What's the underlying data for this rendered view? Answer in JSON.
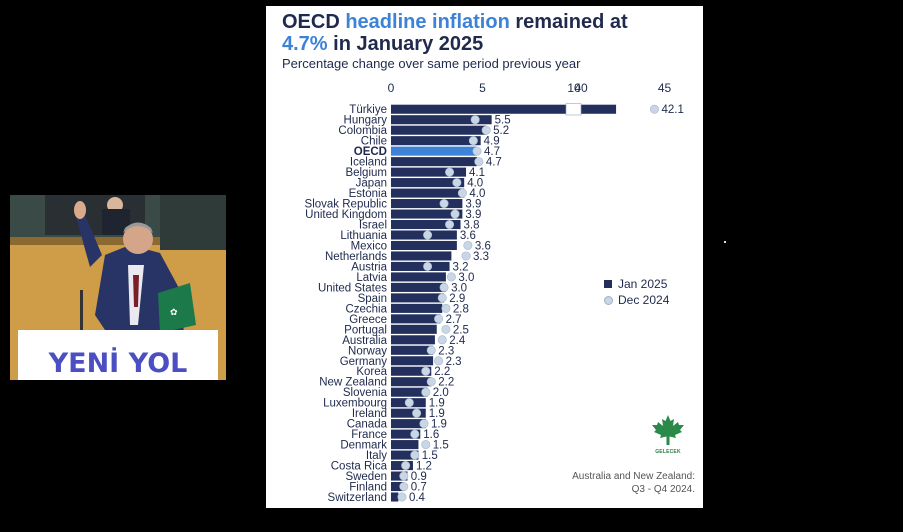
{
  "chart_data": {
    "type": "bar",
    "title_prefix": "OECD ",
    "title_highlight1": "headline inflation",
    "title_mid": " remained at",
    "title_highlight2": "4.7%",
    "title_suffix": " in January 2025",
    "subtitle": "Percentage change over same period previous year",
    "xticks_main": [
      "0",
      "5",
      "10"
    ],
    "xticks_break": [
      "40",
      "45"
    ],
    "xlim_main": [
      0,
      10
    ],
    "xlim_break": [
      40,
      45
    ],
    "highlight_category": "OECD",
    "categories": [
      "Türkiye",
      "Hungary",
      "Colombia",
      "Chile",
      "OECD",
      "Iceland",
      "Belgium",
      "Japan",
      "Estonia",
      "Slovak Republic",
      "United Kingdom",
      "Israel",
      "Lithuania",
      "Mexico",
      "Netherlands",
      "Austria",
      "Latvia",
      "United States",
      "Spain",
      "Czechia",
      "Greece",
      "Portugal",
      "Australia",
      "Norway",
      "Germany",
      "Korea",
      "New Zealand",
      "Slovenia",
      "Luxembourg",
      "Ireland",
      "Canada",
      "France",
      "Denmark",
      "Italy",
      "Costa Rica",
      "Sweden",
      "Finland",
      "Switzerland"
    ],
    "series": [
      {
        "name": "Jan 2025",
        "color": "#23305e",
        "values": [
          42.1,
          5.5,
          5.2,
          4.9,
          4.7,
          4.7,
          4.1,
          4.0,
          4.0,
          3.9,
          3.9,
          3.8,
          3.6,
          3.6,
          3.3,
          3.2,
          3.0,
          3.0,
          2.9,
          2.8,
          2.7,
          2.5,
          2.4,
          2.3,
          2.3,
          2.2,
          2.2,
          2.0,
          1.9,
          1.9,
          1.9,
          1.6,
          1.5,
          1.5,
          1.2,
          0.9,
          0.7,
          0.4
        ]
      },
      {
        "name": "Dec 2024",
        "color": "#c9d6e6",
        "values": [
          44.4,
          4.6,
          5.2,
          4.5,
          4.7,
          4.8,
          3.2,
          3.6,
          3.9,
          2.9,
          3.5,
          3.2,
          2.0,
          4.2,
          4.1,
          2.0,
          3.3,
          2.9,
          2.8,
          3.0,
          2.6,
          3.0,
          2.8,
          2.2,
          2.6,
          1.9,
          2.2,
          1.9,
          1.0,
          1.4,
          1.8,
          1.3,
          1.9,
          1.3,
          0.8,
          0.7,
          0.7,
          0.6
        ]
      }
    ],
    "value_labels": [
      "42.1",
      "5.5",
      "5.2",
      "4.9",
      "4.7",
      "4.7",
      "4.1",
      "4.0",
      "4.0",
      "3.9",
      "3.9",
      "3.8",
      "3.6",
      "3.6",
      "3.3",
      "3.2",
      "3.0",
      "3.0",
      "2.9",
      "2.8",
      "2.7",
      "2.5",
      "2.4",
      "2.3",
      "2.3",
      "2.2",
      "2.2",
      "2.0",
      "1.9",
      "1.9",
      "1.9",
      "1.6",
      "1.5",
      "1.5",
      "1.2",
      "0.9",
      "0.7",
      "0.4"
    ],
    "legend_position": "right",
    "grid": false
  },
  "legend": {
    "jan": "Jan 2025",
    "dec": "Dec 2024"
  },
  "footnote": {
    "line1": "Australia and New Zealand:",
    "line2": "Q3 - Q4 2024."
  },
  "logo": {
    "text": "GELECEK"
  },
  "sign": {
    "text": "YENİ YOL"
  },
  "colors": {
    "bar": "#23305e",
    "highlight": "#3c82d6",
    "dot": "#c9d6e6",
    "title": "#1f2a4d"
  }
}
